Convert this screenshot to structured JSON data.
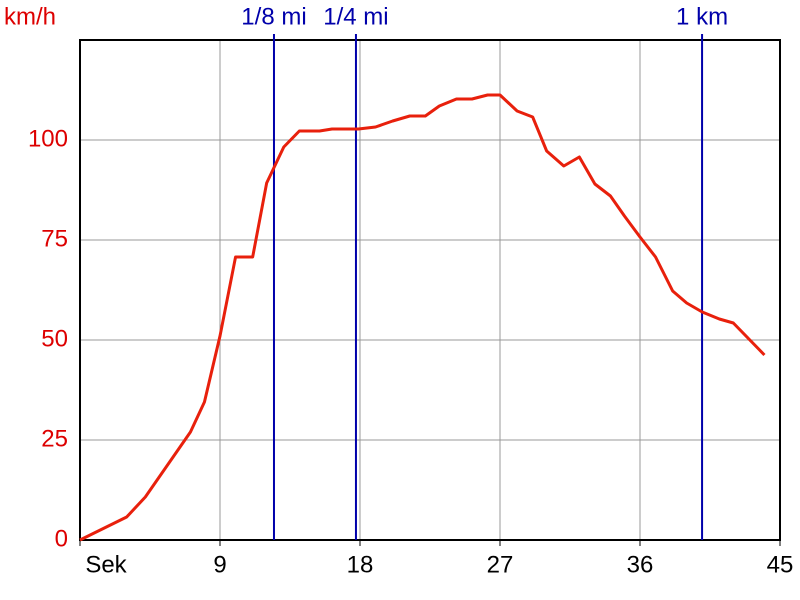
{
  "chart_data": {
    "type": "line",
    "y_label": "km/h",
    "x": [
      0,
      3.0,
      4.2,
      7.1,
      8.0,
      9.0,
      10.0,
      11.1,
      12.0,
      13.1,
      14.1,
      15.4,
      16.2,
      17.9,
      19.0,
      20.1,
      21.2,
      22.2,
      23.1,
      24.2,
      25.2,
      26.2,
      27.0,
      28.1,
      29.1,
      30.0,
      31.1,
      32.1,
      33.1,
      34.1,
      35.0,
      36.0,
      37.0,
      38.1,
      39.0,
      40.0,
      41.1,
      42.0,
      44.0
    ],
    "series": [
      {
        "color": "#e8200c",
        "values": [
          0,
          5.75,
          10.75,
          27,
          34.5,
          51,
          70.75,
          70.75,
          89.25,
          98.25,
          102.25,
          102.25,
          102.75,
          102.75,
          103.25,
          104.75,
          106,
          106,
          108.5,
          110.25,
          110.25,
          111.25,
          111.25,
          107.25,
          105.75,
          97.25,
          93.5,
          95.75,
          89,
          86,
          81,
          75.75,
          70.75,
          62.25,
          59.25,
          57,
          55.25,
          54.25,
          46.25
        ]
      }
    ],
    "xlim": [
      0,
      45
    ],
    "xticks": [
      {
        "value": 0,
        "label": "Sek"
      },
      9,
      18,
      27,
      36,
      45
    ],
    "ylim": [
      0,
      125
    ],
    "yticks": [
      0,
      25,
      50,
      75,
      100
    ],
    "grid": true,
    "markers": [
      {
        "label": "1/8 mi",
        "x": 12.47
      },
      {
        "label": "1/4 mi",
        "x": 17.74
      },
      {
        "label": "1 km",
        "x": 39.99
      }
    ],
    "marker_color": "#0000aa",
    "ytick_color": "#dd0000",
    "xtick_color": "#000000"
  }
}
